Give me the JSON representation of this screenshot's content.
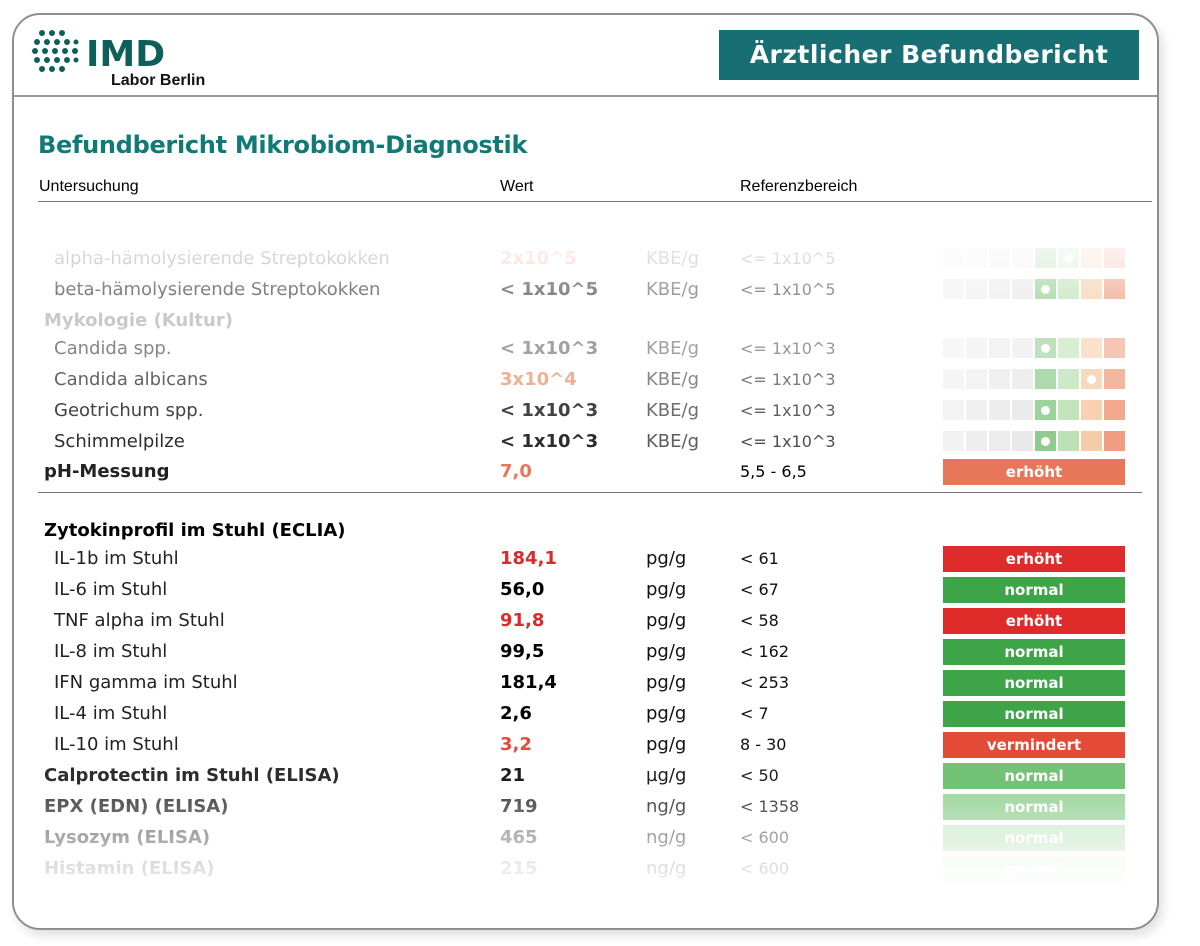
{
  "header": {
    "logo_text": "IMD",
    "logo_sub": "Labor Berlin",
    "banner_title": "Ärztlicher Befundbericht"
  },
  "report_title": "Befundbericht Mikrobiom-Diagnostik",
  "columns": {
    "test": "Untersuchung",
    "value": "Wert",
    "reference": "Referenzbereich"
  },
  "colors": {
    "brand_teal": "#176e73",
    "title_teal": "#127a76",
    "red": "#e03c31",
    "green": "#3da548",
    "light_green": "#8fcf8f",
    "salmon": "#e8765a"
  },
  "micro_rows": [
    {
      "name": "alpha-hämolysierende Streptokokken",
      "value": "2x10^5",
      "unit": "KBE/g",
      "reference": "<= 1x10^5",
      "level": 5,
      "indent": true,
      "value_color": "#e8906a",
      "opacity": 0.35
    },
    {
      "name": "beta-hämolysierende Streptokokken",
      "value": "< 1x10^5",
      "unit": "KBE/g",
      "reference": "<= 1x10^5",
      "level": 4,
      "indent": true,
      "value_color": "#333333",
      "opacity": 0.7
    },
    {
      "name": "Mykologie (Kultur)",
      "section": true,
      "opacity": 0.35
    },
    {
      "name": "Candida spp.",
      "value": "< 1x10^3",
      "unit": "KBE/g",
      "reference": "<= 1x10^3",
      "level": 4,
      "indent": true,
      "value_color": "#555555",
      "opacity": 0.55
    },
    {
      "name": "Candida albicans",
      "value": "3x10^4",
      "unit": "KBE/g",
      "reference": "<= 1x10^3",
      "level": 6,
      "indent": true,
      "value_color": "#e8906a",
      "opacity": 0.7
    },
    {
      "name": "Geotrichum spp.",
      "value": "< 1x10^3",
      "unit": "KBE/g",
      "reference": "<= 1x10^3",
      "level": 4,
      "indent": true,
      "value_color": "#222222",
      "opacity": 0.85
    },
    {
      "name": "Schimmelpilze",
      "value": "< 1x10^3",
      "unit": "KBE/g",
      "reference": "<= 1x10^3",
      "level": 4,
      "indent": true,
      "value_color": "#222222",
      "opacity": 0.95
    }
  ],
  "ph_row": {
    "name": "pH-Messung",
    "value": "7,0",
    "unit": "",
    "reference": "5,5 - 6,5",
    "status": "erhöht",
    "status_color": "#e8765a",
    "value_color": "#e8765a"
  },
  "cytokine_section": "Zytokinprofil im Stuhl (ECLIA)",
  "cytokine_rows": [
    {
      "name": "IL-1b im Stuhl",
      "value": "184,1",
      "unit": "pg/g",
      "reference": "< 61",
      "status": "erhöht",
      "status_color": "#e02b2b",
      "value_color": "#d92b2b",
      "opacity": 1
    },
    {
      "name": "IL-6 im Stuhl",
      "value": "56,0",
      "unit": "pg/g",
      "reference": "< 67",
      "status": "normal",
      "status_color": "#3da548",
      "value_color": "#000000",
      "opacity": 1
    },
    {
      "name": "TNF alpha im Stuhl",
      "value": "91,8",
      "unit": "pg/g",
      "reference": "< 58",
      "status": "erhöht",
      "status_color": "#e02b2b",
      "value_color": "#d92b2b",
      "opacity": 1
    },
    {
      "name": "IL-8 im Stuhl",
      "value": "99,5",
      "unit": "pg/g",
      "reference": "< 162",
      "status": "normal",
      "status_color": "#3da548",
      "value_color": "#000000",
      "opacity": 1
    },
    {
      "name": "IFN gamma im Stuhl",
      "value": "181,4",
      "unit": "pg/g",
      "reference": "< 253",
      "status": "normal",
      "status_color": "#3da548",
      "value_color": "#000000",
      "opacity": 1
    },
    {
      "name": "IL-4 im Stuhl",
      "value": "2,6",
      "unit": "pg/g",
      "reference": "< 7",
      "status": "normal",
      "status_color": "#3da548",
      "value_color": "#000000",
      "opacity": 1
    },
    {
      "name": "IL-10 im Stuhl",
      "value": "3,2",
      "unit": "pg/g",
      "reference": "8 - 30",
      "status": "vermindert",
      "status_color": "#e44a38",
      "value_color": "#e44a38",
      "opacity": 1
    }
  ],
  "elisa_rows": [
    {
      "name": "Calprotectin im Stuhl (ELISA)",
      "value": "21",
      "unit": "µg/g",
      "reference": "< 50",
      "status": "normal",
      "status_color": "#6cbf6e",
      "value_color": "#111111",
      "opacity": 0.95
    },
    {
      "name": "EPX (EDN) (ELISA)",
      "value": "719",
      "unit": "ng/g",
      "reference": "< 1358",
      "status": "normal",
      "status_color": "#8dcf8d",
      "value_color": "#222222",
      "opacity": 0.8
    },
    {
      "name": "Lysozym (ELISA)",
      "value": "465",
      "unit": "ng/g",
      "reference": "< 600",
      "status": "normal",
      "status_color": "#b5e0b5",
      "value_color": "#444444",
      "opacity": 0.6
    },
    {
      "name": "Histamin (ELISA)",
      "value": "215",
      "unit": "ng/g",
      "reference": "< 600",
      "status": "normal",
      "status_color": "#d8efd8",
      "value_color": "#777777",
      "opacity": 0.35
    }
  ]
}
